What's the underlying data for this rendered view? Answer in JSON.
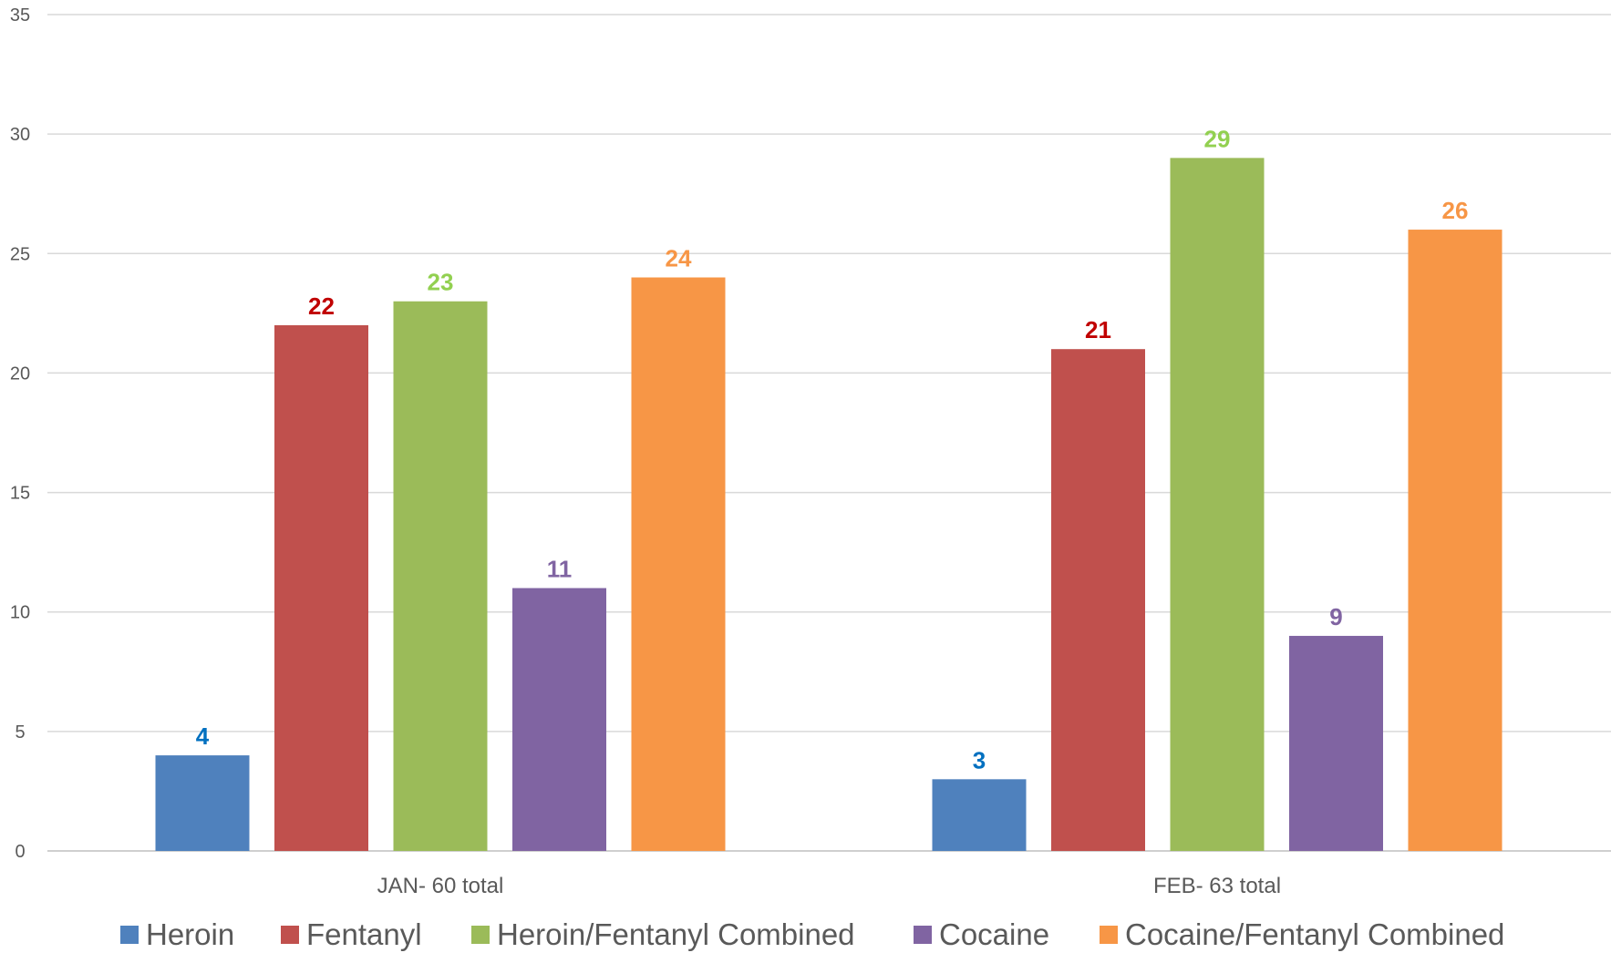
{
  "chart_data": {
    "type": "bar",
    "title": "",
    "xlabel": "",
    "ylabel": "",
    "categories": [
      "JAN- 60 total",
      "FEB- 63 total"
    ],
    "ylim": [
      0,
      35
    ],
    "yticks": [
      0,
      5,
      10,
      15,
      20,
      25,
      30,
      35
    ],
    "grid": true,
    "legend_position": "bottom",
    "series": [
      {
        "name": "Heroin",
        "values": [
          4,
          3
        ],
        "color": "#4f81bd",
        "label_color": "#0070c0"
      },
      {
        "name": "Fentanyl",
        "values": [
          22,
          21
        ],
        "color": "#c0504d",
        "label_color": "#c00000"
      },
      {
        "name": "Heroin/Fentanyl Combined",
        "values": [
          23,
          29
        ],
        "color": "#9bbb59",
        "label_color": "#92d050"
      },
      {
        "name": "Cocaine",
        "values": [
          11,
          9
        ],
        "color": "#8064a2",
        "label_color": "#8064a2"
      },
      {
        "name": "Cocaine/Fentanyl Combined",
        "values": [
          24,
          26
        ],
        "color": "#f79646",
        "label_color": "#f79646"
      }
    ]
  }
}
